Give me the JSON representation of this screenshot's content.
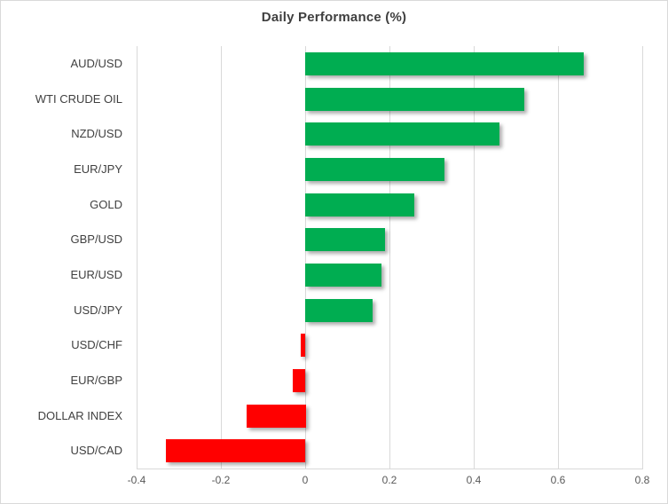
{
  "title": "Daily Performance (%)",
  "chart_data": {
    "type": "bar",
    "orientation": "horizontal",
    "title": "Daily Performance (%)",
    "xlabel": "",
    "ylabel": "",
    "categories": [
      "AUD/USD",
      "WTI CRUDE OIL",
      "NZD/USD",
      "EUR/JPY",
      "GOLD",
      "GBP/USD",
      "EUR/USD",
      "USD/JPY",
      "USD/CHF",
      "EUR/GBP",
      "DOLLAR INDEX",
      "USD/CAD"
    ],
    "values": [
      0.66,
      0.52,
      0.46,
      0.33,
      0.26,
      0.19,
      0.18,
      0.16,
      -0.01,
      -0.03,
      -0.14,
      -0.33
    ],
    "xlim": [
      -0.4,
      0.8
    ],
    "x_ticks": [
      -0.4,
      -0.2,
      0,
      0.2,
      0.4,
      0.6,
      0.8
    ],
    "x_tick_labels": [
      "-0.4",
      "-0.2",
      "0",
      "0.2",
      "0.4",
      "0.6",
      "0.8"
    ],
    "grid": "vertical-only",
    "legend": "none",
    "colors": {
      "positive_bar": "#00AD51",
      "negative_bar": "#FF0000",
      "gridline": "#D9D9D9",
      "axis_line": "#D9D9D9",
      "title_text": "#3F3F3F",
      "category_text": "#404040",
      "tick_text": "#595959"
    }
  }
}
